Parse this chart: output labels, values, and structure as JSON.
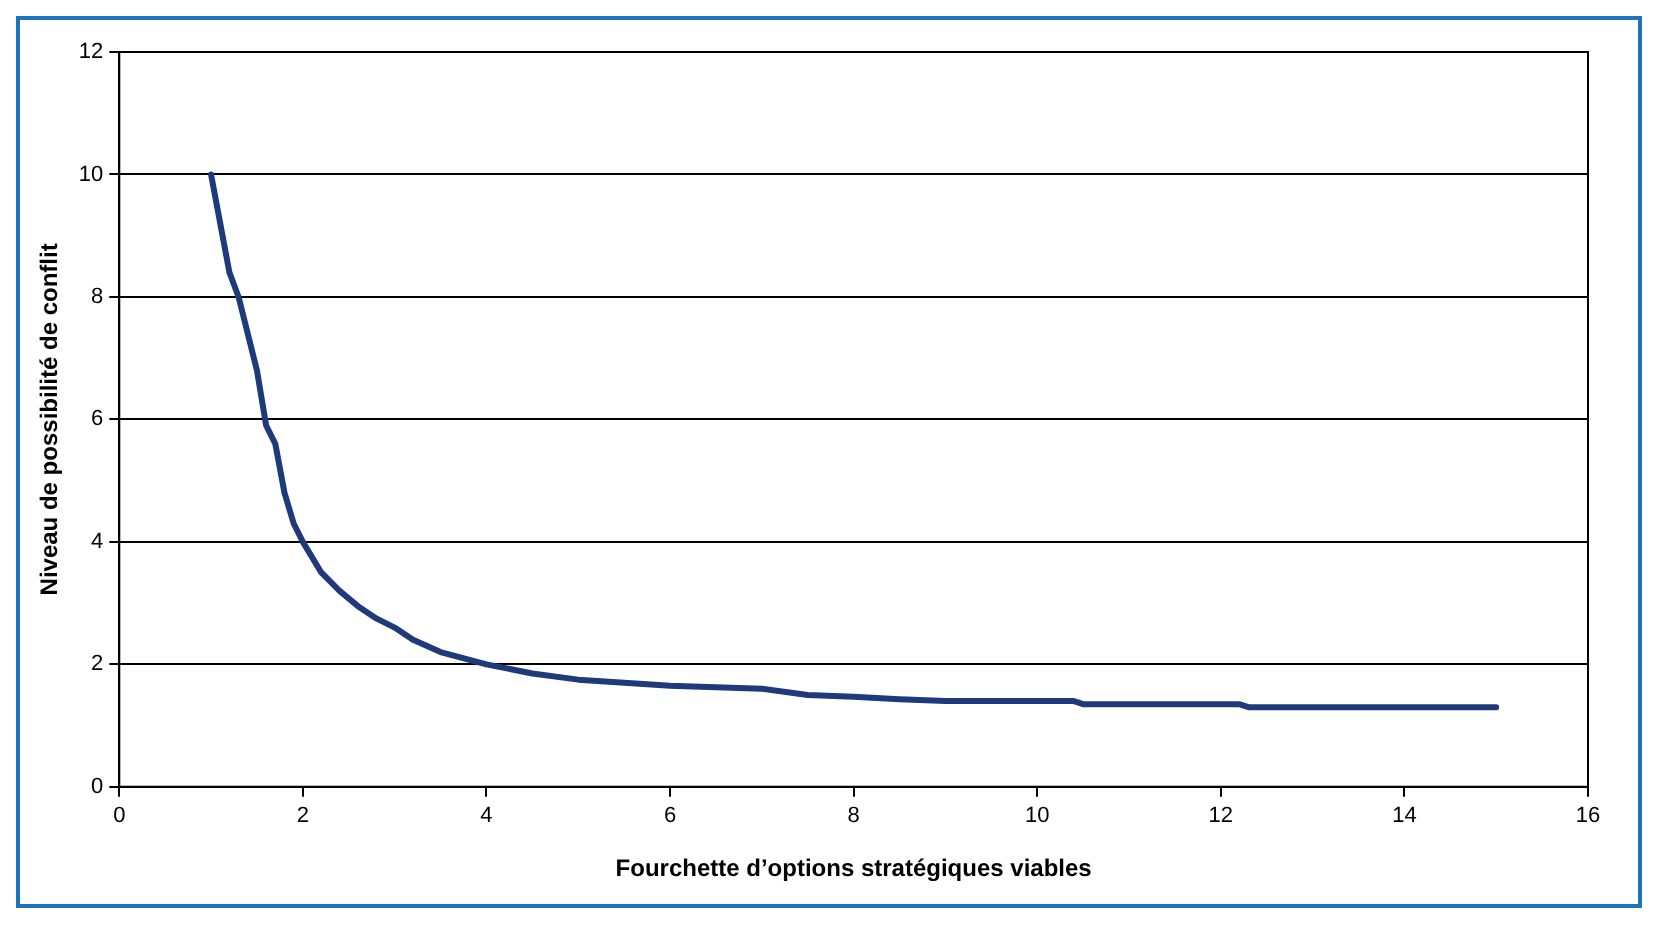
{
  "chart_data": {
    "type": "line",
    "xlabel": "Fourchette d’options stratégiques viables",
    "ylabel": "Niveau de possibilité de conflit",
    "x": [
      1,
      1.2,
      1.3,
      1.5,
      1.6,
      1.7,
      1.8,
      1.9,
      2,
      2.2,
      2.4,
      2.6,
      2.8,
      3,
      3.2,
      3.5,
      4,
      4.5,
      5,
      5.5,
      6,
      7,
      7.5,
      8,
      8.5,
      9,
      10.4,
      10.5,
      12.2,
      12.3,
      15
    ],
    "series": [
      {
        "color": "#1f3a7a",
        "values": [
          10,
          8.4,
          8.0,
          6.8,
          5.9,
          5.6,
          4.8,
          4.3,
          4.0,
          3.5,
          3.2,
          2.95,
          2.75,
          2.6,
          2.4,
          2.2,
          2.0,
          1.85,
          1.75,
          1.7,
          1.65,
          1.6,
          1.5,
          1.47,
          1.43,
          1.4,
          1.4,
          1.35,
          1.35,
          1.3,
          1.3
        ]
      }
    ],
    "xlim": [
      0,
      16
    ],
    "xticks": [
      0,
      2,
      4,
      6,
      8,
      10,
      12,
      14,
      16
    ],
    "ylim": [
      0,
      12
    ],
    "yticks": [
      0,
      2,
      4,
      6,
      8,
      10,
      12
    ],
    "grid": "y",
    "legend": false,
    "marker": "none",
    "line_style": "solid"
  }
}
